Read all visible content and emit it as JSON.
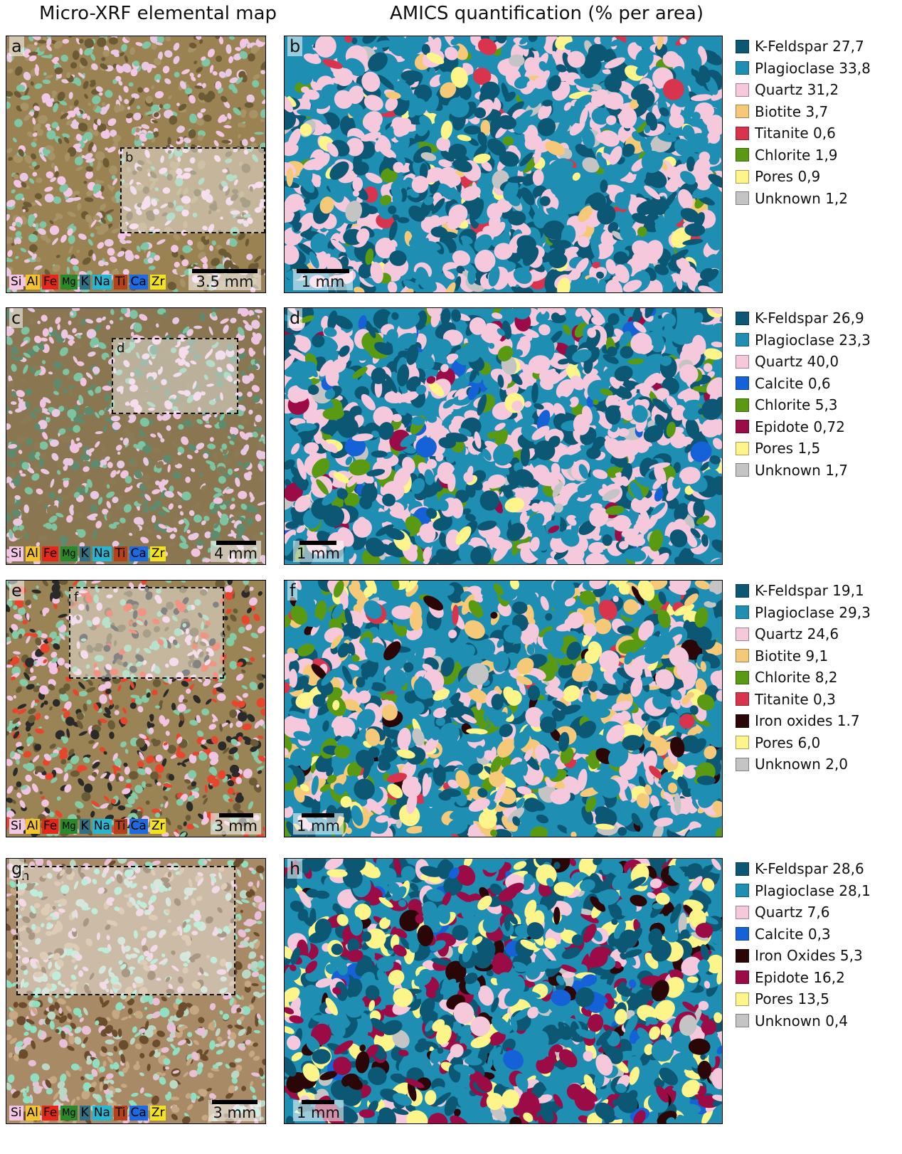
{
  "headers": {
    "left": "Micro-XRF elemental map",
    "right": "AMICS quantification (% per area)"
  },
  "colors": {
    "K-Feldspar": "#0b5774",
    "Plagioclase": "#1e8fb3",
    "Quartz": "#f6c8dc",
    "Biotite": "#f6c978",
    "Titanite": "#d8344e",
    "Chlorite": "#5a9a12",
    "Pores": "#fdf58a",
    "Unknown": "#c4c4c4",
    "Calcite": "#1561d8",
    "Epidote": "#9b0b46",
    "Iron oxides": "#2a0606"
  },
  "element_keys": [
    {
      "symbol": "Si",
      "color": "#f4c6e6"
    },
    {
      "symbol": "Al",
      "color": "#f5c32a"
    },
    {
      "symbol": "Fe",
      "color": "#e8271b"
    },
    {
      "symbol": "Mg",
      "color": "#2a8a2a"
    },
    {
      "symbol": "K",
      "color": "#2f7086"
    },
    {
      "symbol": "Na",
      "color": "#26b6d2"
    },
    {
      "symbol": "Ti",
      "color": "#b5401a"
    },
    {
      "symbol": "Ca",
      "color": "#1e6be0"
    },
    {
      "symbol": "Zr",
      "color": "#f3e21e"
    }
  ],
  "rows": [
    {
      "xrf": {
        "letter": "a",
        "inset_letter": "b",
        "scale": "3.5 mm"
      },
      "amics": {
        "letter": "b",
        "scale": "1 mm"
      },
      "legend": [
        {
          "mineral": "K-Feldspar",
          "value": "27,7"
        },
        {
          "mineral": "Plagioclase",
          "value": "33,8"
        },
        {
          "mineral": "Quartz",
          "value": "31,2"
        },
        {
          "mineral": "Biotite",
          "value": "3,7"
        },
        {
          "mineral": "Titanite",
          "value": "0,6"
        },
        {
          "mineral": "Chlorite",
          "value": "1,9"
        },
        {
          "mineral": "Pores",
          "value": "0,9"
        },
        {
          "mineral": "Unknown",
          "value": "1,2"
        }
      ]
    },
    {
      "xrf": {
        "letter": "c",
        "inset_letter": "d",
        "scale": "4 mm"
      },
      "amics": {
        "letter": "d",
        "scale": "1 mm"
      },
      "legend": [
        {
          "mineral": "K-Feldspar",
          "value": "26,9"
        },
        {
          "mineral": "Plagioclase",
          "value": "23,3"
        },
        {
          "mineral": "Quartz",
          "value": "40,0"
        },
        {
          "mineral": "Calcite",
          "value": "0,6"
        },
        {
          "mineral": "Chlorite",
          "value": "5,3"
        },
        {
          "mineral": "Epidote",
          "value": "0,72"
        },
        {
          "mineral": "Pores",
          "value": "1,5"
        },
        {
          "mineral": "Unknown",
          "value": "1,7"
        }
      ]
    },
    {
      "xrf": {
        "letter": "e",
        "inset_letter": "f",
        "scale": "3 mm"
      },
      "amics": {
        "letter": "f",
        "scale": "1 mm"
      },
      "legend": [
        {
          "mineral": "K-Feldspar",
          "value": "19,1"
        },
        {
          "mineral": "Plagioclase",
          "value": "29,3"
        },
        {
          "mineral": "Quartz",
          "value": "24,6"
        },
        {
          "mineral": "Biotite",
          "value": "9,1"
        },
        {
          "mineral": "Chlorite",
          "value": "8,2"
        },
        {
          "mineral": "Titanite",
          "value": "0,3"
        },
        {
          "mineral": "Iron oxides",
          "value": "1.7"
        },
        {
          "mineral": "Pores",
          "value": "6,0"
        },
        {
          "mineral": "Unknown",
          "value": "2,0"
        }
      ]
    },
    {
      "xrf": {
        "letter": "g",
        "inset_letter": "h",
        "scale": "3 mm"
      },
      "amics": {
        "letter": "h",
        "scale": "1 mm"
      },
      "legend": [
        {
          "mineral": "K-Feldspar",
          "value": "28,6"
        },
        {
          "mineral": "Plagioclase",
          "value": "28,1"
        },
        {
          "mineral": "Quartz",
          "value": "7,6"
        },
        {
          "mineral": "Calcite",
          "value": "0,3"
        },
        {
          "mineral": "Iron Oxides",
          "value": "5,3"
        },
        {
          "mineral": "Epidote",
          "value": "16,2"
        },
        {
          "mineral": "Pores",
          "value": "13,5"
        },
        {
          "mineral": "Unknown",
          "value": "0,4"
        }
      ]
    }
  ]
}
